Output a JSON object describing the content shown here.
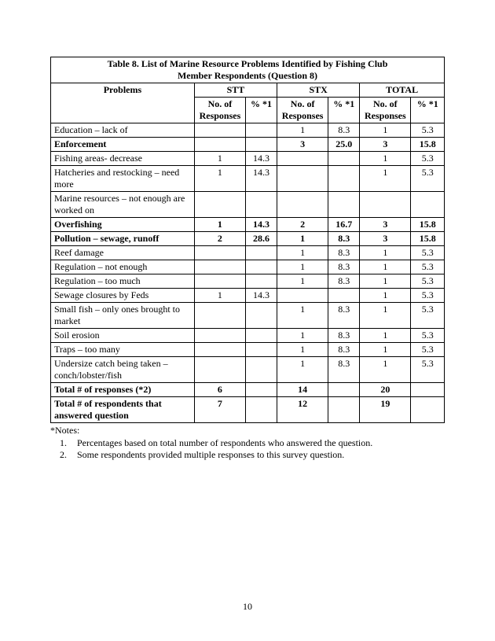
{
  "table": {
    "title_line1": "Table 8. List of Marine Resource Problems Identified by Fishing Club",
    "title_line2": "Member Respondents (Question 8)",
    "col_problems": "Problems",
    "group_stt": "STT",
    "group_stx": "STX",
    "group_total": "TOTAL",
    "sub_no_responses": "No. of Responses",
    "sub_pct": "% *1",
    "rows": [
      {
        "label": "Education – lack of",
        "bold": false,
        "stt_n": "",
        "stt_p": "",
        "stx_n": "1",
        "stx_p": "8.3",
        "tot_n": "1",
        "tot_p": "5.3"
      },
      {
        "label": "Enforcement",
        "bold": true,
        "stt_n": "",
        "stt_p": "",
        "stx_n": "3",
        "stx_p": "25.0",
        "tot_n": "3",
        "tot_p": "15.8"
      },
      {
        "label": "Fishing areas- decrease",
        "bold": false,
        "stt_n": "1",
        "stt_p": "14.3",
        "stx_n": "",
        "stx_p": "",
        "tot_n": "1",
        "tot_p": "5.3"
      },
      {
        "label": "Hatcheries and restocking – need more",
        "bold": false,
        "stt_n": "1",
        "stt_p": "14.3",
        "stx_n": "",
        "stx_p": "",
        "tot_n": "1",
        "tot_p": "5.3"
      },
      {
        "label": "Marine resources – not enough are worked on",
        "bold": false,
        "stt_n": "",
        "stt_p": "",
        "stx_n": "",
        "stx_p": "",
        "tot_n": "",
        "tot_p": ""
      },
      {
        "label": "Overfishing",
        "bold": true,
        "stt_n": "1",
        "stt_p": "14.3",
        "stx_n": "2",
        "stx_p": "16.7",
        "tot_n": "3",
        "tot_p": "15.8"
      },
      {
        "label": "Pollution – sewage, runoff",
        "bold": true,
        "stt_n": "2",
        "stt_p": "28.6",
        "stx_n": "1",
        "stx_p": "8.3",
        "tot_n": "3",
        "tot_p": "15.8"
      },
      {
        "label": "Reef damage",
        "bold": false,
        "stt_n": "",
        "stt_p": "",
        "stx_n": "1",
        "stx_p": "8.3",
        "tot_n": "1",
        "tot_p": "5.3"
      },
      {
        "label": "Regulation – not enough",
        "bold": false,
        "stt_n": "",
        "stt_p": "",
        "stx_n": "1",
        "stx_p": "8.3",
        "tot_n": "1",
        "tot_p": "5.3"
      },
      {
        "label": "Regulation – too much",
        "bold": false,
        "stt_n": "",
        "stt_p": "",
        "stx_n": "1",
        "stx_p": "8.3",
        "tot_n": "1",
        "tot_p": "5.3"
      },
      {
        "label": "Sewage closures by Feds",
        "bold": false,
        "stt_n": "1",
        "stt_p": "14.3",
        "stx_n": "",
        "stx_p": "",
        "tot_n": "1",
        "tot_p": "5.3"
      },
      {
        "label": "Small fish – only ones brought to market",
        "bold": false,
        "stt_n": "",
        "stt_p": "",
        "stx_n": "1",
        "stx_p": "8.3",
        "tot_n": "1",
        "tot_p": "5.3"
      },
      {
        "label": "Soil erosion",
        "bold": false,
        "stt_n": "",
        "stt_p": "",
        "stx_n": "1",
        "stx_p": "8.3",
        "tot_n": "1",
        "tot_p": "5.3"
      },
      {
        "label": "Traps – too many",
        "bold": false,
        "stt_n": "",
        "stt_p": "",
        "stx_n": "1",
        "stx_p": "8.3",
        "tot_n": "1",
        "tot_p": "5.3"
      },
      {
        "label": "Undersize catch being taken – conch/lobster/fish",
        "bold": false,
        "stt_n": "",
        "stt_p": "",
        "stx_n": "1",
        "stx_p": "8.3",
        "tot_n": "1",
        "tot_p": "5.3"
      }
    ],
    "totals1": {
      "label": "Total # of responses (*2)",
      "stt_n": "6",
      "stt_p": "",
      "stx_n": "14",
      "stx_p": "",
      "tot_n": "20",
      "tot_p": ""
    },
    "totals2": {
      "label": "Total # of respondents that answered question",
      "stt_n": "7",
      "stt_p": "",
      "stx_n": "12",
      "stx_p": "",
      "tot_n": "19",
      "tot_p": ""
    }
  },
  "notes": {
    "heading": "*Notes:",
    "items": [
      "Percentages based on total number of respondents who answered the question.",
      "Some respondents provided multiple responses to this survey question."
    ]
  },
  "page_number": "10",
  "style": {
    "col_widths_pct": [
      36.5,
      13,
      8,
      13,
      8,
      13,
      8.5
    ],
    "font_family": "Times New Roman",
    "font_size_pt": 12,
    "border_color": "#000000",
    "background_color": "#ffffff",
    "text_color": "#000000"
  }
}
